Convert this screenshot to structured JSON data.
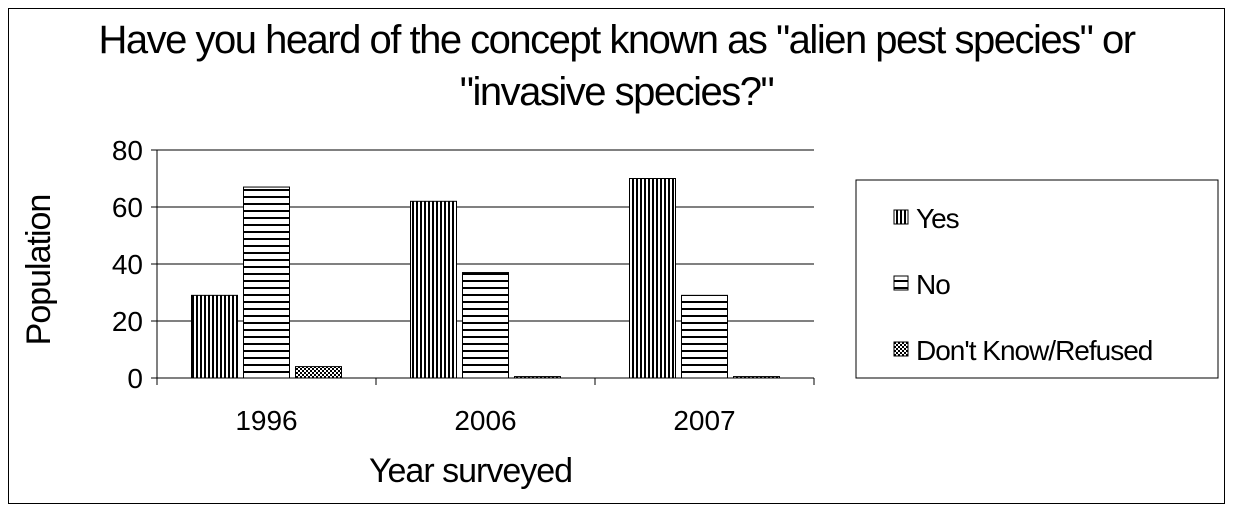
{
  "chart_data": {
    "type": "bar",
    "title_lines": [
      "Have you heard of the concept known as \"alien pest species\" or",
      "\"invasive species?\""
    ],
    "xlabel": "Year surveyed",
    "ylabel": "Population",
    "categories": [
      "1996",
      "2006",
      "2007"
    ],
    "ylim": [
      0,
      80
    ],
    "yticks": [
      "0",
      "20",
      "40",
      "60",
      "80"
    ],
    "grid": true,
    "legend_position": "right",
    "series": [
      {
        "name": "Yes",
        "values": [
          29,
          62,
          70
        ],
        "pattern": "vertical-stripes"
      },
      {
        "name": "No",
        "values": [
          67,
          37,
          29
        ],
        "pattern": "horizontal-stripes"
      },
      {
        "name": "Don't Know/Refused",
        "values": [
          4,
          0.5,
          0.5
        ],
        "pattern": "checker"
      }
    ]
  }
}
